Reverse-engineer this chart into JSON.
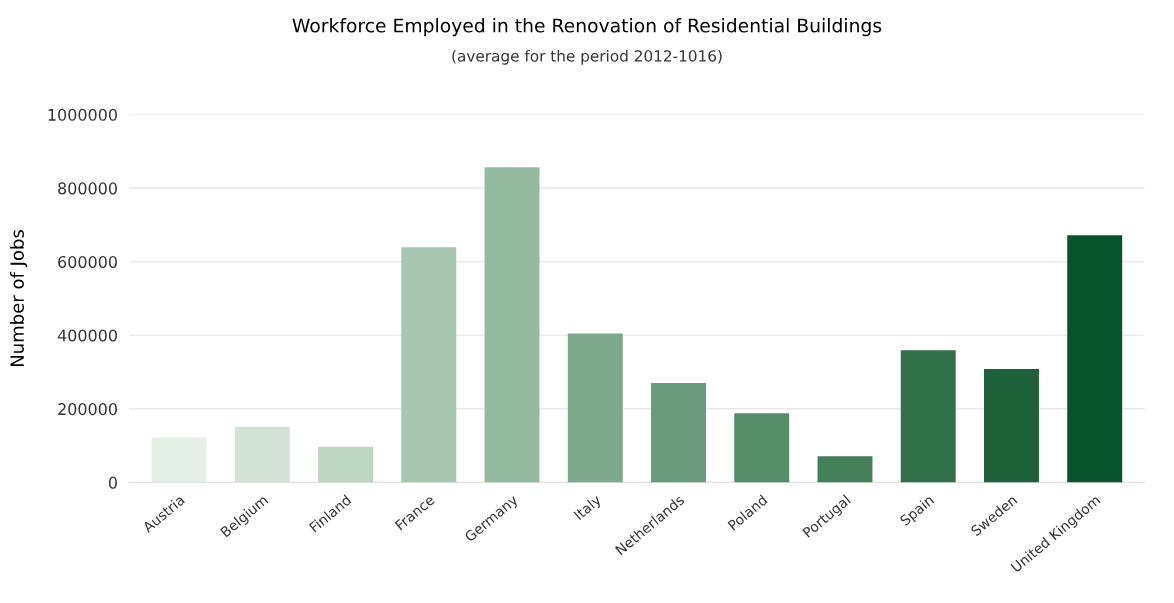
{
  "chart_data": {
    "type": "bar",
    "title": "Workforce Employed in the Renovation of Residential Buildings",
    "subtitle": "(average for the period 2012-1016)",
    "ylabel": "Number of Jobs",
    "categories": [
      "Austria",
      "Belgium",
      "Finland",
      "France",
      "Germany",
      "Italy",
      "Netherlands",
      "Poland",
      "Portugal",
      "Spain",
      "Sweden",
      "United Kingdom"
    ],
    "values": [
      122000,
      151000,
      97000,
      639000,
      857000,
      405000,
      270000,
      188000,
      71000,
      359000,
      308000,
      672000
    ],
    "colors": [
      "#e3efe5",
      "#d0e3d4",
      "#bdd6c2",
      "#a8c7b1",
      "#94ba9f",
      "#7fa98c",
      "#6a9c7b",
      "#568d69",
      "#437f58",
      "#307048",
      "#1d6139",
      "#07542b"
    ],
    "ylim": [
      0,
      1000000
    ],
    "yticks": [
      0,
      200000,
      400000,
      600000,
      800000,
      1000000
    ],
    "grid": "y",
    "legend": false
  }
}
